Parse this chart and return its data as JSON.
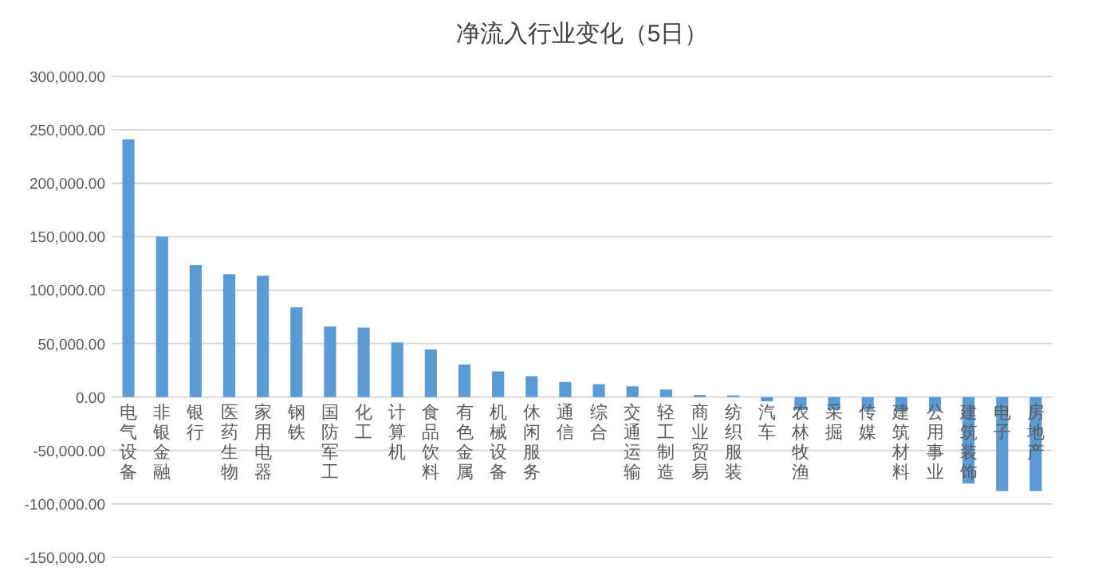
{
  "chart_data": {
    "type": "bar",
    "title": "净流入行业变化（5日）",
    "categories": [
      "电气设备",
      "非银金融",
      "银行",
      "医药生物",
      "家用电器",
      "钢铁",
      "国防军工",
      "化工",
      "计算机",
      "食品饮料",
      "有色金属",
      "机械设备",
      "休闲服务",
      "通信",
      "综合",
      "交通运输",
      "轻工制造",
      "商业贸易",
      "纺织服装",
      "汽车",
      "农林牧渔",
      "采掘",
      "传媒",
      "建筑材料",
      "公用事业",
      "建筑装饰",
      "电子",
      "房地产"
    ],
    "values": [
      241000,
      150000,
      123500,
      115000,
      113500,
      84000,
      66000,
      65000,
      51000,
      44500,
      30500,
      24000,
      19500,
      14000,
      12000,
      10000,
      7000,
      2000,
      1500,
      -4000,
      -12000,
      -12000,
      -12000,
      -13500,
      -13500,
      -81000,
      -88000,
      -88000
    ],
    "color": "#5b9bd5",
    "ylim": [
      -150000,
      300000
    ],
    "yticks": [
      {
        "value": -150000,
        "label": "-150,000.00"
      },
      {
        "value": -100000,
        "label": "-100,000.00"
      },
      {
        "value": -50000,
        "label": "-50,000.00"
      },
      {
        "value": 0,
        "label": "0.00"
      },
      {
        "value": 50000,
        "label": "50,000.00"
      },
      {
        "value": 100000,
        "label": "100,000.00"
      },
      {
        "value": 150000,
        "label": "150,000.00"
      },
      {
        "value": 200000,
        "label": "200,000.00"
      },
      {
        "value": 250000,
        "label": "250,000.00"
      },
      {
        "value": 300000,
        "label": "300,000.00"
      }
    ],
    "grid": "y"
  }
}
